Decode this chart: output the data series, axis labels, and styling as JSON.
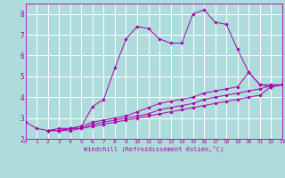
{
  "xlabel": "Windchill (Refroidissement éolien,°C)",
  "xlim": [
    0,
    23
  ],
  "ylim": [
    2,
    8.5
  ],
  "xticks": [
    0,
    1,
    2,
    3,
    4,
    5,
    6,
    7,
    8,
    9,
    10,
    11,
    12,
    13,
    14,
    15,
    16,
    17,
    18,
    19,
    20,
    21,
    22,
    23
  ],
  "yticks": [
    2,
    3,
    4,
    5,
    6,
    7,
    8
  ],
  "bg_color": "#aedcdc",
  "grid_color": "#ffffff",
  "line_color": "#aa00aa",
  "lines": [
    {
      "x": [
        0,
        1,
        2,
        3,
        4,
        5,
        6,
        7,
        8,
        9,
        10,
        11,
        12,
        13,
        14,
        15,
        16,
        17,
        18,
        19,
        20,
        21,
        22,
        23
      ],
      "y": [
        2.8,
        2.5,
        2.4,
        2.4,
        2.5,
        2.6,
        3.55,
        3.9,
        5.4,
        6.8,
        7.4,
        7.3,
        6.8,
        6.6,
        6.6,
        8.0,
        8.2,
        7.6,
        7.5,
        6.3,
        5.2,
        4.6,
        4.5,
        4.6
      ]
    },
    {
      "x": [
        2,
        3,
        4,
        5,
        6,
        7,
        8,
        9,
        10,
        11,
        12,
        13,
        14,
        15,
        16,
        17,
        18,
        19,
        20,
        21,
        22,
        23
      ],
      "y": [
        2.4,
        2.5,
        2.5,
        2.6,
        2.8,
        2.9,
        3.0,
        3.1,
        3.3,
        3.5,
        3.7,
        3.8,
        3.9,
        4.0,
        4.2,
        4.3,
        4.4,
        4.5,
        5.2,
        4.6,
        4.6,
        4.6
      ]
    },
    {
      "x": [
        2,
        3,
        4,
        5,
        6,
        7,
        8,
        9,
        10,
        11,
        12,
        13,
        14,
        15,
        16,
        17,
        18,
        19,
        20,
        21,
        22,
        23
      ],
      "y": [
        2.4,
        2.4,
        2.5,
        2.5,
        2.7,
        2.8,
        2.9,
        3.0,
        3.1,
        3.2,
        3.4,
        3.5,
        3.6,
        3.7,
        3.9,
        4.0,
        4.1,
        4.2,
        4.3,
        4.4,
        4.55,
        4.6
      ]
    },
    {
      "x": [
        2,
        3,
        4,
        5,
        6,
        7,
        8,
        9,
        10,
        11,
        12,
        13,
        14,
        15,
        16,
        17,
        18,
        19,
        20,
        21,
        22,
        23
      ],
      "y": [
        2.4,
        2.4,
        2.4,
        2.5,
        2.6,
        2.7,
        2.8,
        2.9,
        3.0,
        3.1,
        3.2,
        3.3,
        3.4,
        3.5,
        3.6,
        3.7,
        3.8,
        3.9,
        4.0,
        4.1,
        4.5,
        4.6
      ]
    }
  ]
}
